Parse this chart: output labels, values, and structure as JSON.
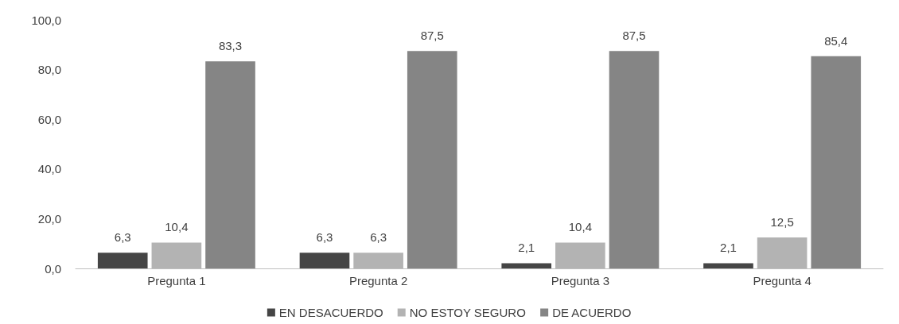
{
  "chart_data": {
    "type": "bar",
    "categories": [
      "Pregunta 1",
      "Pregunta 2",
      "Pregunta 3",
      "Pregunta 4"
    ],
    "series": [
      {
        "name": "EN DESACUERDO",
        "color": "#454545",
        "values": [
          6.3,
          6.3,
          2.1,
          2.1
        ],
        "value_labels": [
          "6,3",
          "6,3",
          "2,1",
          "2,1"
        ]
      },
      {
        "name": "NO ESTOY SEGURO",
        "color": "#b3b3b3",
        "values": [
          10.4,
          6.3,
          10.4,
          12.5
        ],
        "value_labels": [
          "10,4",
          "6,3",
          "10,4",
          "12,5"
        ]
      },
      {
        "name": "DE ACUERDO",
        "color": "#858585",
        "values": [
          83.3,
          87.5,
          87.5,
          85.4
        ],
        "value_labels": [
          "83,3",
          "87,5",
          "87,5",
          "85,4"
        ]
      }
    ],
    "ylim": [
      0,
      100
    ],
    "yticks": [
      {
        "value": 0,
        "label": "0,0"
      },
      {
        "value": 20,
        "label": "20,0"
      },
      {
        "value": 40,
        "label": "40,0"
      },
      {
        "value": 60,
        "label": "60,0"
      },
      {
        "value": 80,
        "label": "80,0"
      },
      {
        "value": 100,
        "label": "100,0"
      }
    ],
    "grid": false,
    "legend": "bottom"
  }
}
